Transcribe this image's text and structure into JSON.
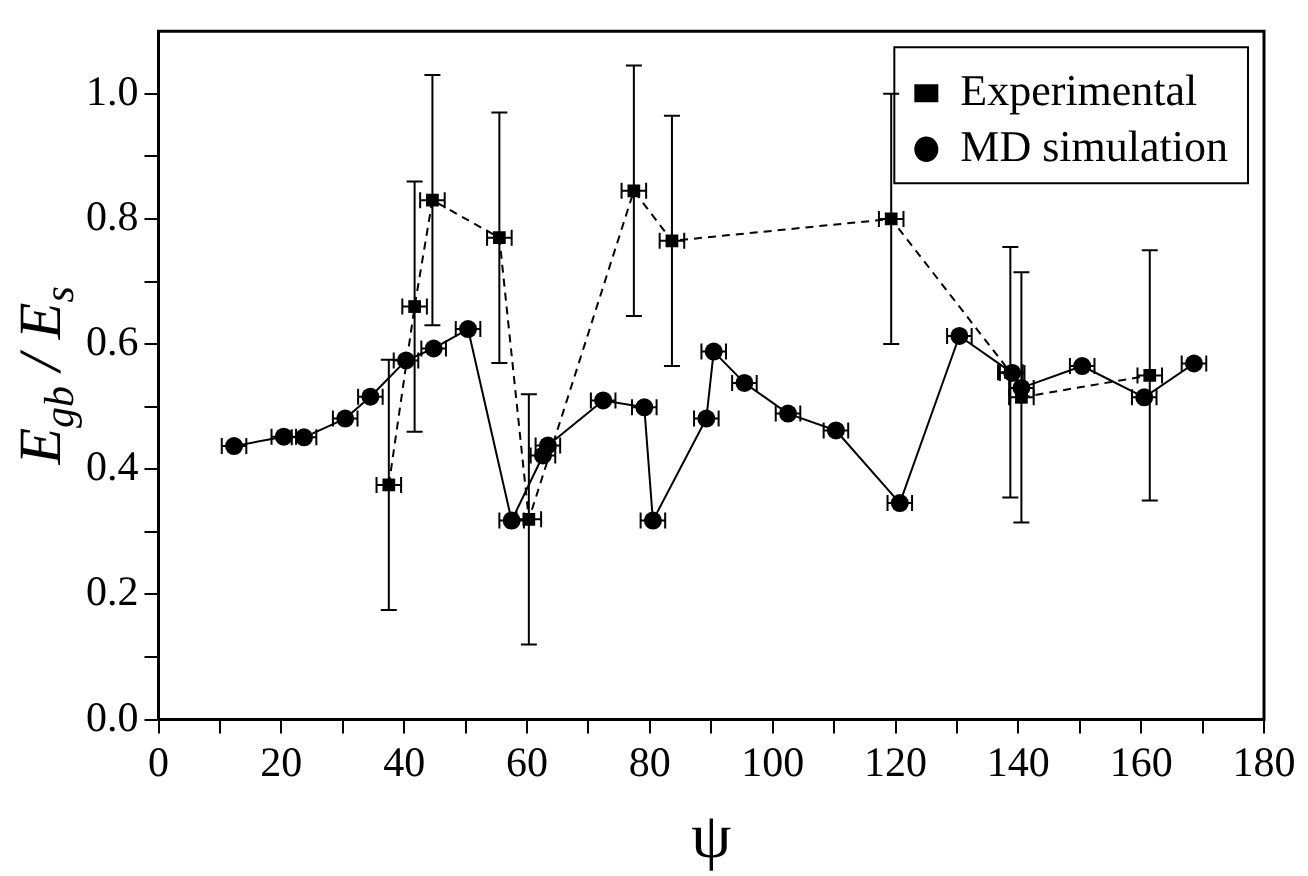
{
  "chart_data": {
    "type": "line",
    "xlabel": "ψ",
    "ylabel": "E$_{gb}$ / E$_{s}$",
    "xlim": [
      0,
      180
    ],
    "ylim": [
      0,
      1.1
    ],
    "xticks": [
      0,
      {
        "value": 10,
        "label": null
      },
      20,
      {
        "value": 30,
        "label": null
      },
      40,
      {
        "value": 50,
        "label": null
      },
      60,
      {
        "value": 70,
        "label": null
      },
      80,
      {
        "value": 90,
        "label": null
      },
      100,
      {
        "value": 110,
        "label": null
      },
      120,
      {
        "value": 130,
        "label": null
      },
      140,
      {
        "value": 150,
        "label": null
      },
      160,
      {
        "value": 170,
        "label": null
      },
      180
    ],
    "yticks": [
      {
        "value": 0,
        "label": "0.0"
      },
      {
        "value": 0.1,
        "label": null
      },
      {
        "value": 0.2,
        "label": "0.2"
      },
      {
        "value": 0.3,
        "label": null
      },
      {
        "value": 0.4,
        "label": "0.4"
      },
      {
        "value": 0.5,
        "label": null
      },
      {
        "value": 0.6,
        "label": "0.6"
      },
      {
        "value": 0.7,
        "label": null
      },
      {
        "value": 0.8,
        "label": "0.8"
      },
      {
        "value": 0.9,
        "label": null
      },
      {
        "value": 1.0,
        "label": "1.0"
      }
    ],
    "grid": false,
    "legend": "top right",
    "series": [
      {
        "name": "Experimental",
        "color": "#000000",
        "marker": "square",
        "line_style": "dashed",
        "x": [
          37.5,
          41.7,
          44.6,
          55.5,
          60.3,
          77.4,
          83.6,
          119.3,
          138.7,
          140.5,
          161.4
        ],
        "values": [
          0.375,
          0.66,
          0.83,
          0.77,
          0.32,
          0.845,
          0.765,
          0.8,
          0.555,
          0.515,
          0.55
        ],
        "errors": [
          0.2,
          0.2,
          0.2,
          0.2,
          0.2,
          0.2,
          0.2,
          0.2,
          0.2,
          0.2,
          0.2
        ],
        "xerrors": [
          2,
          2,
          2,
          2,
          2,
          2,
          2,
          2,
          2,
          2,
          2
        ]
      },
      {
        "name": "MD simulation",
        "color": "#000000",
        "marker": "circle",
        "line_style": "solid",
        "x": [
          12.3,
          20.4,
          23.7,
          30.4,
          34.5,
          40.3,
          44.8,
          50.4,
          57.5,
          62.6,
          63.4,
          72.4,
          79.1,
          80.5,
          89.2,
          90.4,
          95.4,
          102.5,
          110.3,
          120.7,
          130.4,
          139,
          140.5,
          150.4,
          160.5,
          168.6
        ],
        "values": [
          0.437,
          0.452,
          0.451,
          0.481,
          0.516,
          0.574,
          0.593,
          0.624,
          0.318,
          0.422,
          0.438,
          0.51,
          0.499,
          0.318,
          0.481,
          0.588,
          0.538,
          0.489,
          0.462,
          0.346,
          0.613,
          0.554,
          0.53,
          0.565,
          0.515,
          0.569
        ],
        "xerrors": [
          2,
          2,
          2,
          2,
          2,
          2,
          2,
          2,
          2,
          2,
          2,
          2,
          2,
          2,
          2,
          2,
          2,
          2,
          2,
          2,
          2,
          2,
          2,
          2,
          2,
          2
        ]
      }
    ]
  }
}
